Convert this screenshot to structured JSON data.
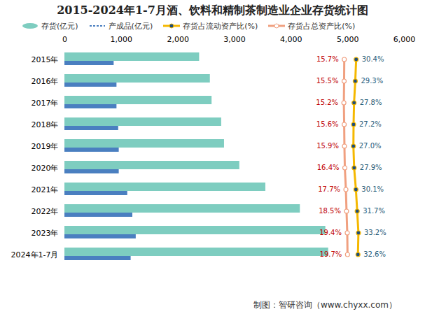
{
  "chart_data": {
    "type": "bar",
    "title": "2015-2024年1-7月酒、饮料和精制茶制造业企业存货统计图",
    "caption": "制图：智研咨询（www.chyxx.com）",
    "orientation": "horizontal",
    "legend": "top",
    "grid": false,
    "categories": [
      "2015年",
      "2016年",
      "2017年",
      "2018年",
      "2019年",
      "2020年",
      "2021年",
      "2022年",
      "2023年",
      "2024年1-7月"
    ],
    "series": [
      {
        "name": "存货(亿元)",
        "color": "#7ecdc0",
        "values": [
          2380,
          2570,
          2600,
          2770,
          2820,
          3090,
          3550,
          4160,
          4610,
          4660
        ]
      },
      {
        "name": "产成品(亿元)",
        "color": "#4a7fc0",
        "values": [
          870,
          920,
          920,
          950,
          960,
          960,
          1110,
          1200,
          1260,
          1170
        ]
      },
      {
        "name": "存货占流动资产比(%)",
        "type": "line",
        "axis": "y2",
        "color": "#f5b800",
        "marker": "circle",
        "data_labels": true,
        "values": [
          30.4,
          29.3,
          27.8,
          27.2,
          27.0,
          27.9,
          30.1,
          31.7,
          33.2,
          32.6
        ],
        "value_labels": [
          "30.4%",
          "29.3%",
          "27.8%",
          "27.2%",
          "27.0%",
          "27.9%",
          "30.1%",
          "31.7%",
          "33.2%",
          "32.6%"
        ]
      },
      {
        "name": "存货占总资产比(%)",
        "type": "line",
        "axis": "y2",
        "color": "#f0a080",
        "marker": "circle",
        "data_labels": true,
        "values": [
          15.7,
          15.5,
          15.2,
          15.6,
          15.9,
          16.4,
          17.7,
          18.5,
          19.4,
          19.7
        ],
        "value_labels": [
          "15.7%",
          "15.5%",
          "15.2%",
          "15.6%",
          "15.9%",
          "16.4%",
          "17.7%",
          "18.5%",
          "19.4%",
          "19.7%"
        ]
      }
    ],
    "xlim": [
      0,
      6000
    ],
    "xticks": [
      0,
      1000,
      2000,
      3000,
      4000,
      5000,
      6000
    ],
    "y2lim": [
      -330,
      90
    ]
  }
}
